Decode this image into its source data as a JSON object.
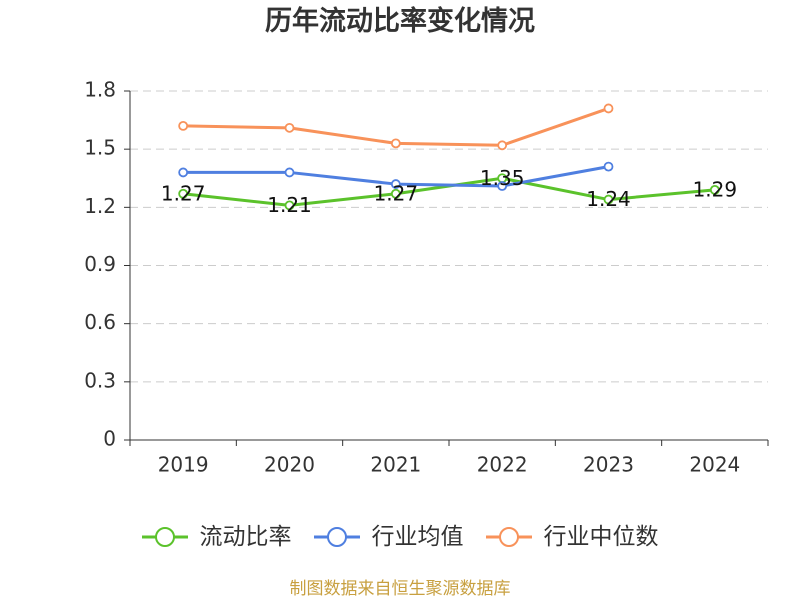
{
  "chart_data": {
    "type": "line",
    "title": "历年流动比率变化情况",
    "categories": [
      "2019",
      "2020",
      "2021",
      "2022",
      "2023",
      "2024"
    ],
    "ylim": [
      0,
      1.8
    ],
    "yticks": [
      0,
      0.3,
      0.6,
      0.9,
      1.2,
      1.5,
      1.8
    ],
    "grid": true,
    "legend_position": "bottom",
    "series": [
      {
        "name": "流动比率",
        "color": "#5bc22b",
        "values": [
          1.27,
          1.21,
          1.27,
          1.35,
          1.24,
          1.29
        ],
        "show_labels": true
      },
      {
        "name": "行业均值",
        "color": "#4f7fe0",
        "values": [
          1.38,
          1.38,
          1.32,
          1.31,
          1.41,
          null
        ],
        "show_labels": false
      },
      {
        "name": "行业中位数",
        "color": "#f8925a",
        "values": [
          1.62,
          1.61,
          1.53,
          1.52,
          1.71,
          null
        ],
        "show_labels": false
      }
    ]
  },
  "footer": {
    "source": "制图数据来自恒生聚源数据库",
    "color": "#c8a040"
  }
}
